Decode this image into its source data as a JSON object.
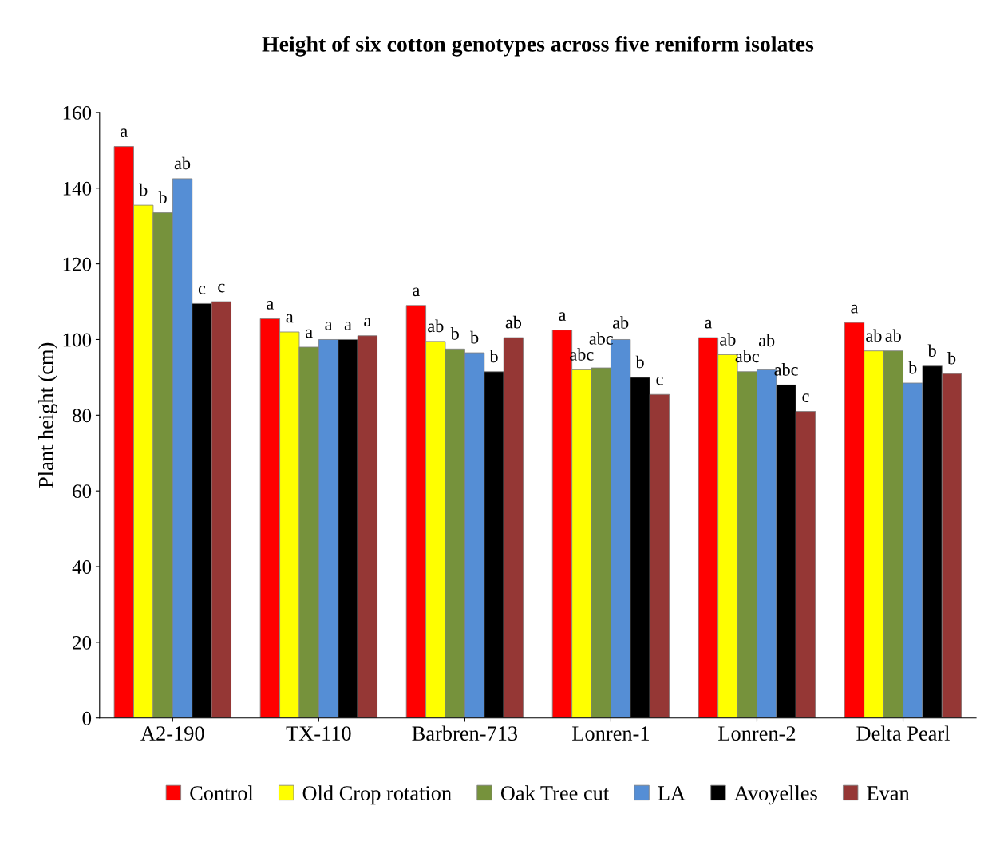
{
  "chart_data": {
    "type": "bar",
    "title": "Height of six cotton genotypes across five reniform isolates",
    "ylabel": "Plant height (cm)",
    "categories": [
      "A2-190",
      "TX-110",
      "Barbren-713",
      "Lonren-1",
      "Lonren-2",
      "Delta Pearl"
    ],
    "series": [
      {
        "name": "Control",
        "color": "#ff0000",
        "values": [
          151,
          105.5,
          109,
          102.5,
          100.5,
          104.5
        ],
        "value_labels": [
          "a",
          "a",
          "a",
          "a",
          "a",
          "a"
        ]
      },
      {
        "name": "Old Crop rotation",
        "color": "#ffff00",
        "values": [
          135.5,
          102,
          99.5,
          92,
          96,
          97
        ],
        "value_labels": [
          "b",
          "a",
          "ab",
          "abc",
          "ab",
          "ab"
        ]
      },
      {
        "name": "Oak Tree cut",
        "color": "#76923c",
        "values": [
          133.5,
          98,
          97.5,
          92.5,
          91.5,
          97
        ],
        "value_labels": [
          "b",
          "a",
          "b",
          "abc",
          "abc",
          "ab"
        ]
      },
      {
        "name": "LA",
        "color": "#558ed5",
        "values": [
          142.5,
          100,
          96.5,
          100,
          92,
          88.5
        ],
        "value_labels": [
          "ab",
          "a",
          "b",
          "ab",
          "ab",
          "b"
        ]
      },
      {
        "name": "Avoyelles",
        "color": "#000000",
        "values": [
          109.5,
          100,
          91.5,
          90,
          88,
          93
        ],
        "value_labels": [
          "c",
          "a",
          "b",
          "b",
          "abc",
          "b"
        ]
      },
      {
        "name": "Evan",
        "color": "#953735",
        "values": [
          110,
          101,
          100.5,
          85.5,
          81,
          91
        ],
        "value_labels": [
          "c",
          "a",
          "ab",
          "c",
          "c",
          "b"
        ]
      }
    ],
    "ylim": [
      0,
      160
    ],
    "yticks": [
      0,
      20,
      40,
      60,
      80,
      100,
      120,
      140,
      160
    ],
    "grid": false,
    "legend": "bottom"
  }
}
